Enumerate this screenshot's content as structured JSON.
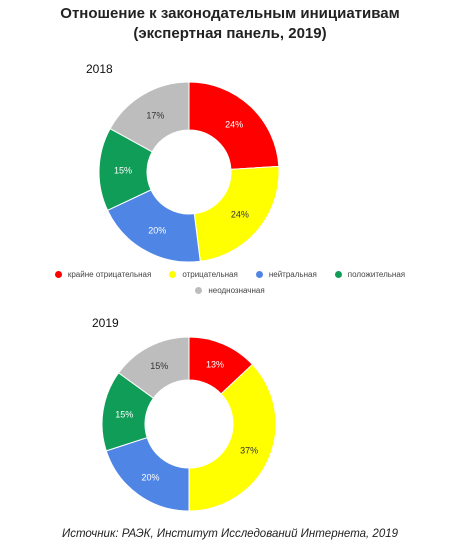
{
  "title_line1": "Отношение к законодательным инициативам",
  "title_line2": "(экспертная панель, 2019)",
  "legend": [
    {
      "label": "крайне отрицательная",
      "color": "#ff0000"
    },
    {
      "label": "отрицательная",
      "color": "#ffff00"
    },
    {
      "label": "нейтральная",
      "color": "#4f86e6"
    },
    {
      "label": "положительная",
      "color": "#109d58"
    },
    {
      "label": "неоднозначная",
      "color": "#bdbdbd"
    }
  ],
  "chart_data": [
    {
      "type": "pie",
      "title": "2018",
      "categories": [
        "крайне отрицательная",
        "отрицательная",
        "нейтральная",
        "положительная",
        "неоднозначная"
      ],
      "values": [
        24,
        24,
        20,
        15,
        17
      ],
      "labels": [
        "24%",
        "24%",
        "20%",
        "15%",
        "17%"
      ],
      "colors": [
        "#ff0000",
        "#ffff00",
        "#4f86e6",
        "#109d58",
        "#bdbdbd"
      ]
    },
    {
      "type": "pie",
      "title": "2019",
      "categories": [
        "крайне отрицательная",
        "отрицательная",
        "нейтральная",
        "положительная",
        "неоднозначная"
      ],
      "values": [
        13,
        37,
        20,
        15,
        15
      ],
      "labels": [
        "13%",
        "37%",
        "20%",
        "15%",
        "15%"
      ],
      "colors": [
        "#ff0000",
        "#ffff00",
        "#4f86e6",
        "#109d58",
        "#bdbdbd"
      ]
    }
  ],
  "source": "Источник: РАЭК, Институт Исследований Интернета, 2019"
}
